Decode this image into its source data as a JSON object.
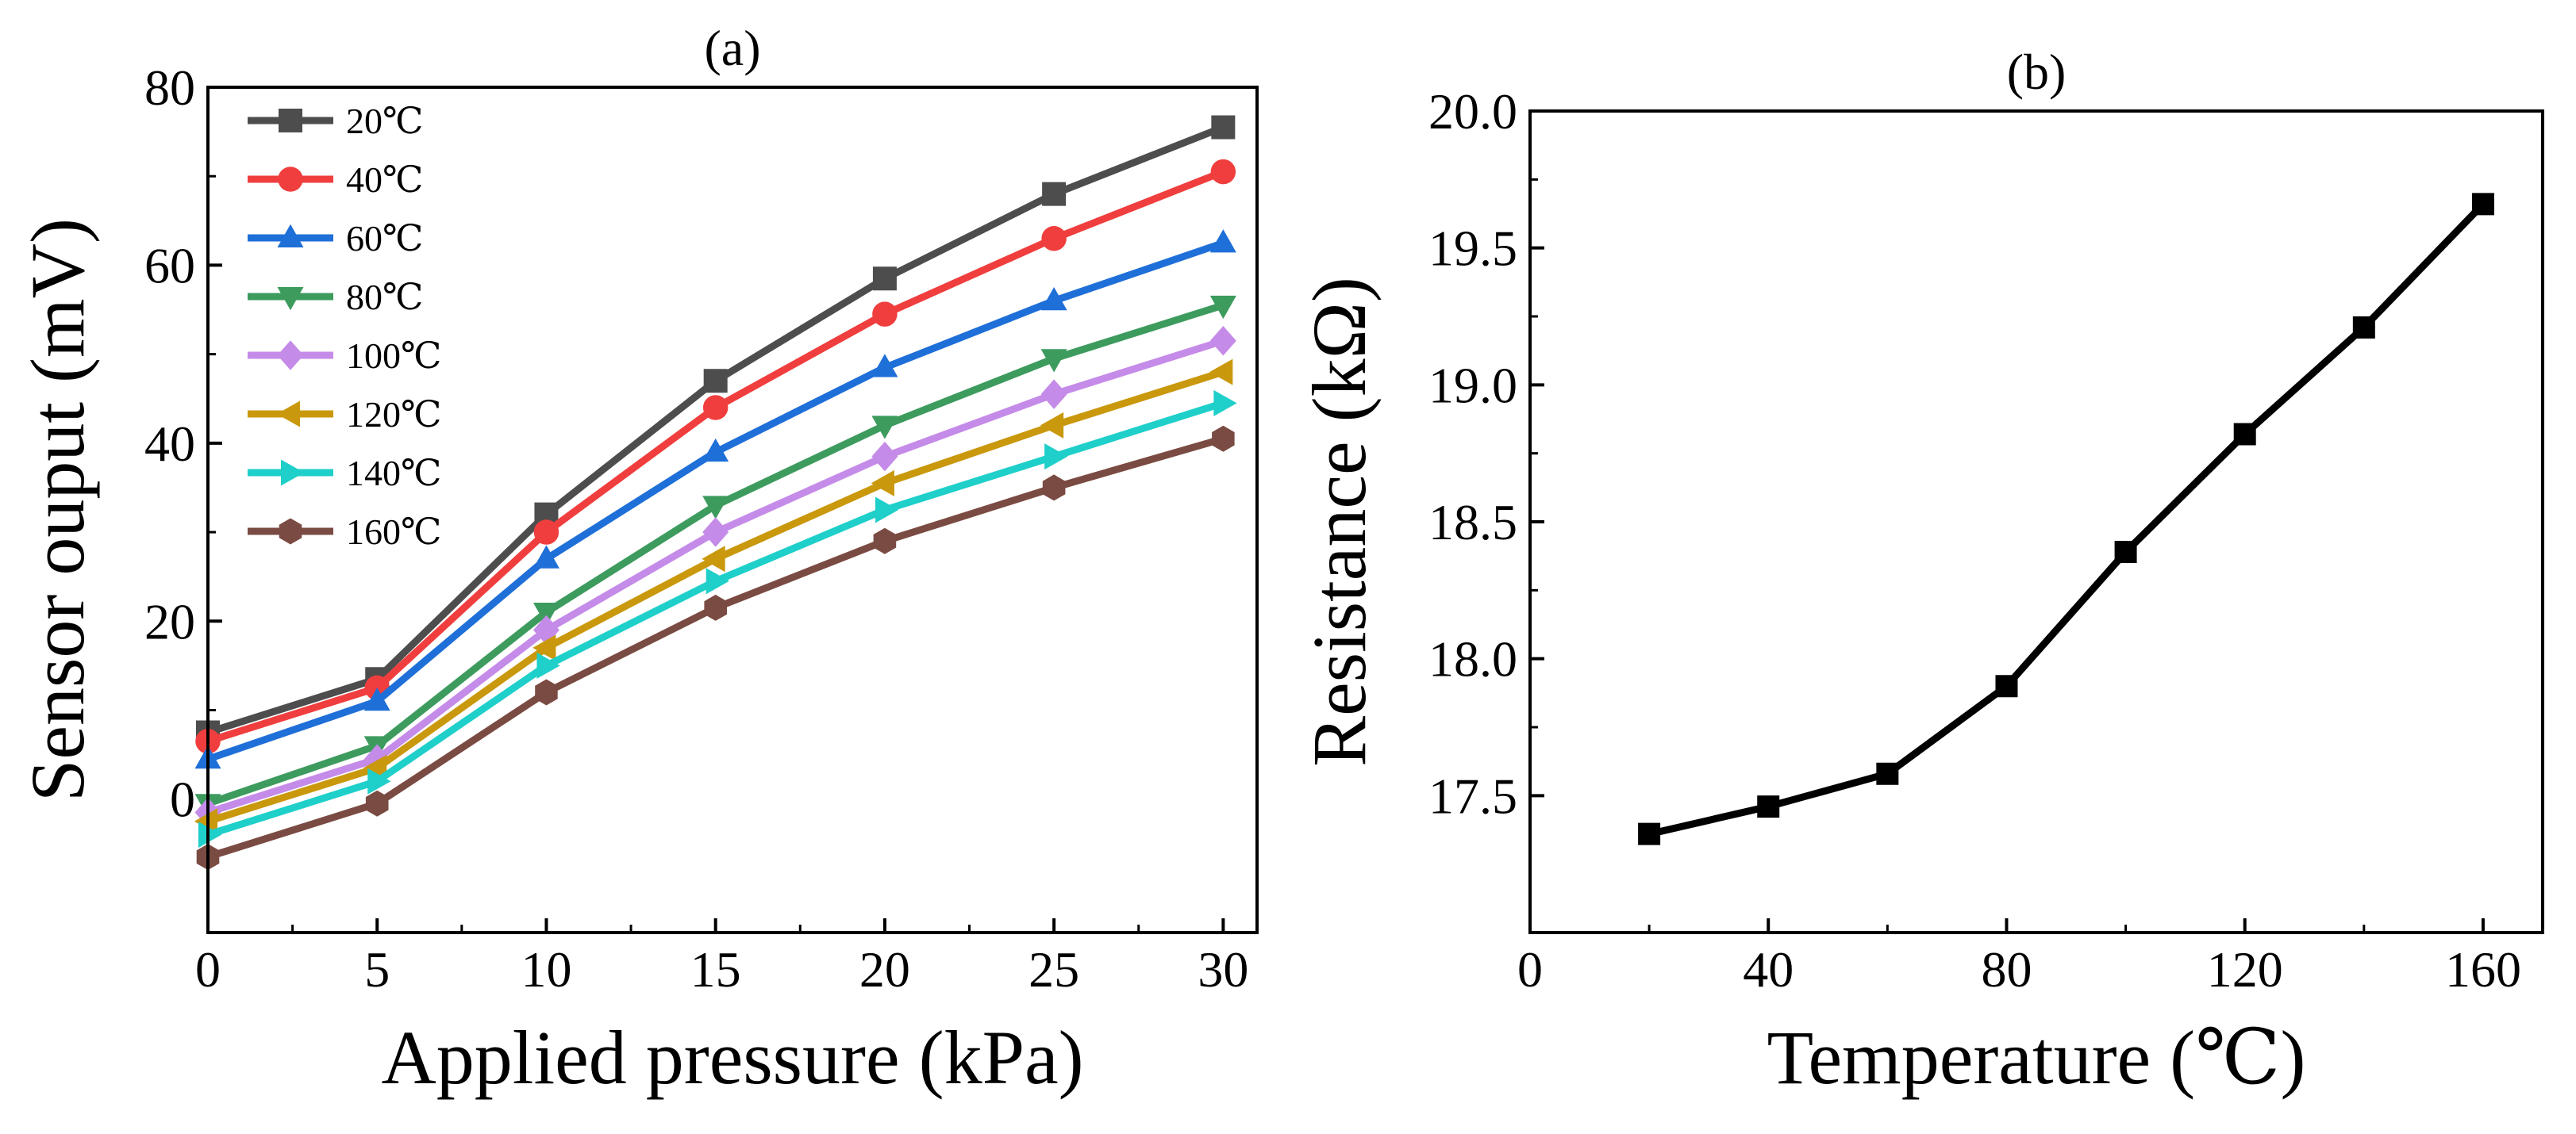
{
  "chart_data": [
    {
      "panel": "(a)",
      "type": "line",
      "xlabel": "Applied pressure (kPa)",
      "ylabel": "Sensor ouput (mV)",
      "xlim": [
        0,
        31
      ],
      "ylim": [
        -15,
        80
      ],
      "xticks": [
        0,
        5,
        10,
        15,
        20,
        25,
        30
      ],
      "yticks": [
        0,
        20,
        40,
        60,
        80
      ],
      "legend_position": "top-left",
      "x": [
        0,
        5,
        10,
        15,
        20,
        25,
        30
      ],
      "series": [
        {
          "name": "20℃",
          "color": "#4d4d4d",
          "marker": "square",
          "values": [
            7.5,
            13.5,
            32.0,
            47.0,
            58.5,
            68.0,
            75.5
          ]
        },
        {
          "name": "40℃",
          "color": "#f03e3e",
          "marker": "circle",
          "values": [
            6.5,
            12.5,
            30.0,
            44.0,
            54.5,
            63.0,
            70.5
          ]
        },
        {
          "name": "60℃",
          "color": "#1f6fd8",
          "marker": "triangle-up",
          "values": [
            4.5,
            11.0,
            27.0,
            39.0,
            48.5,
            56.0,
            62.5
          ]
        },
        {
          "name": "80℃",
          "color": "#3d9b5e",
          "marker": "triangle-down",
          "values": [
            -0.5,
            6.0,
            21.0,
            33.0,
            42.0,
            49.5,
            55.5
          ]
        },
        {
          "name": "100℃",
          "color": "#c58be8",
          "marker": "diamond",
          "values": [
            -1.5,
            4.5,
            19.0,
            30.0,
            38.5,
            45.5,
            51.5
          ]
        },
        {
          "name": "120℃",
          "color": "#c9980c",
          "marker": "triangle-left",
          "values": [
            -2.5,
            3.5,
            17.0,
            27.0,
            35.5,
            42.0,
            48.0
          ]
        },
        {
          "name": "140℃",
          "color": "#1fcfc9",
          "marker": "triangle-right",
          "values": [
            -4.0,
            2.0,
            15.0,
            24.5,
            32.5,
            38.5,
            44.5
          ]
        },
        {
          "name": "160℃",
          "color": "#7a4b42",
          "marker": "hexagon",
          "values": [
            -6.5,
            -0.5,
            12.0,
            21.5,
            29.0,
            35.0,
            40.5
          ]
        }
      ]
    },
    {
      "panel": "(b)",
      "type": "line",
      "xlabel": "Temperature (℃)",
      "ylabel": "Resistance (kΩ)",
      "xlim": [
        0,
        170
      ],
      "ylim": [
        17.0,
        20.0
      ],
      "xticks": [
        0,
        40,
        80,
        120,
        160
      ],
      "yticks": [
        17.5,
        18.0,
        18.5,
        19.0,
        19.5,
        20.0
      ],
      "ytick_labels": [
        "17.5",
        "18.0",
        "18.5",
        "19.0",
        "19.5",
        "20.0"
      ],
      "x": [
        20,
        40,
        60,
        80,
        100,
        120,
        140,
        160
      ],
      "series": [
        {
          "name": "Resistance",
          "color": "#000000",
          "marker": "square",
          "values": [
            17.36,
            17.46,
            17.58,
            17.9,
            18.39,
            18.82,
            19.21,
            19.66
          ]
        }
      ]
    }
  ]
}
